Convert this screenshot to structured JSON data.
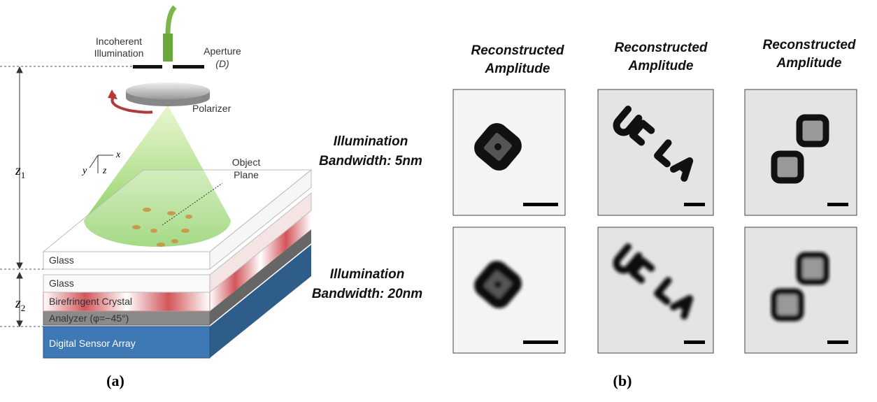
{
  "panel_a": {
    "label": "(a)",
    "source_label": [
      "Incoherent",
      "Illumination"
    ],
    "aperture_label": [
      "Aperture",
      "(D)"
    ],
    "polarizer": "Polarizer",
    "axes": {
      "x": "x",
      "y": "y",
      "z": "z"
    },
    "object_plane": [
      "Object",
      "Plane"
    ],
    "distances": {
      "z1": {
        "symbol": "z",
        "subscript": "1"
      },
      "z2": {
        "symbol": "z",
        "subscript": "2"
      }
    },
    "layers": [
      "Glass",
      "Glass",
      "Birefringent Crystal",
      "Analyzer (φ=−45°)",
      "Digital Sensor Array"
    ]
  },
  "panel_b": {
    "label": "(b)",
    "column_headers": [
      [
        "Reconstructed",
        "Amplitude"
      ],
      [
        "Reconstructed",
        "Amplitude"
      ],
      [
        "Reconstructed",
        "Amplitude"
      ]
    ],
    "row_labels": [
      [
        "Illumination",
        "Bandwidth: 5nm"
      ],
      [
        "Illumination",
        "Bandwidth: 20nm"
      ]
    ]
  }
}
